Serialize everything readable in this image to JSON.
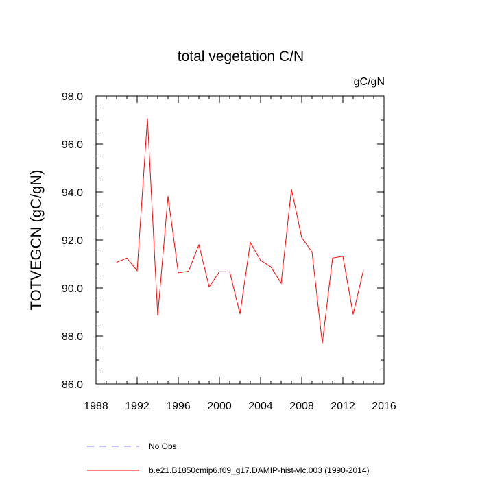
{
  "chart_data": {
    "type": "line",
    "title": "total vegetation C/N",
    "units_label": "gC/gN",
    "ylabel": "TOTVEGCN  (gC/gN)",
    "xlabel": "",
    "xlim": [
      1988,
      2016
    ],
    "ylim": [
      86.0,
      98.0
    ],
    "x_ticks": [
      1988,
      1992,
      1996,
      2000,
      2004,
      2008,
      2012,
      2016
    ],
    "y_ticks": [
      86.0,
      88.0,
      90.0,
      92.0,
      94.0,
      96.0,
      98.0
    ],
    "y_tick_labels": [
      "86.0",
      "88.0",
      "90.0",
      "92.0",
      "94.0",
      "96.0",
      "98.0"
    ],
    "grid": false,
    "series": [
      {
        "name": "b.e21.B1850cmip6.f09_g17.DAMIP-hist-vlc.003 (1990-2014)",
        "color": "#ff0000",
        "style": "solid",
        "x": [
          1990,
          1991,
          1992,
          1993,
          1994,
          1995,
          1996,
          1997,
          1998,
          1999,
          2000,
          2001,
          2002,
          2003,
          2004,
          2005,
          2006,
          2007,
          2008,
          2009,
          2010,
          2011,
          2012,
          2013,
          2014
        ],
        "values": [
          91.07,
          91.25,
          90.72,
          97.07,
          88.85,
          93.82,
          90.63,
          90.7,
          91.8,
          90.05,
          90.68,
          90.67,
          88.92,
          91.9,
          91.15,
          90.88,
          90.2,
          94.12,
          92.1,
          91.5,
          87.7,
          91.25,
          91.32,
          88.9,
          90.75
        ]
      }
    ],
    "legend": [
      {
        "label": "No Obs",
        "color": "#8080ff",
        "style": "dashed"
      },
      {
        "label": "b.e21.B1850cmip6.f09_g17.DAMIP-hist-vlc.003 (1990-2014)",
        "color": "#ff0000",
        "style": "solid"
      }
    ],
    "legend_position": "bottom-left"
  }
}
